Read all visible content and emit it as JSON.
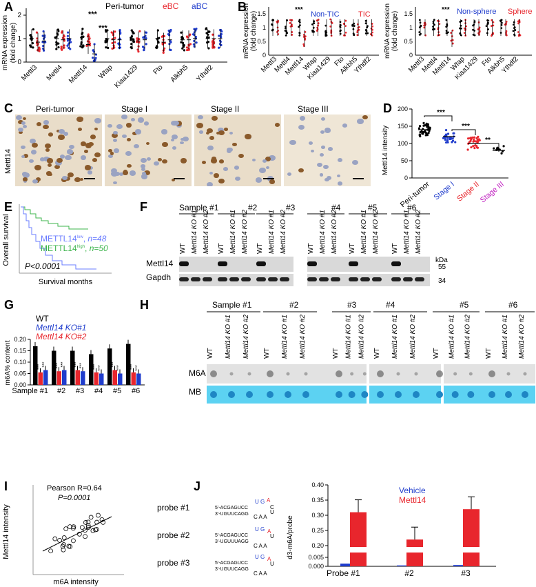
{
  "panels": {
    "A": {
      "letter": "A",
      "legend": {
        "peri": "Peri-tumor",
        "ebc": "eBC",
        "abc": "aBC"
      },
      "ylabel1": "mRNA expression",
      "ylabel2": "(fold change)",
      "genes": [
        "Mettl3",
        "Mettl4",
        "Mettl14",
        "Wtap",
        "Kiaa1429",
        "Fto",
        "Alkbh5",
        "Ythdf2"
      ],
      "sig": "***",
      "yticks": [
        "0",
        "1",
        "2"
      ]
    },
    "B": {
      "letter": "B",
      "left": {
        "legend": {
          "a": "Non-TIC",
          "b": "TIC"
        }
      },
      "right": {
        "legend": {
          "a": "Non-sphere",
          "b": "Sphere"
        }
      },
      "ylabel1": "mRNA expression",
      "ylabel2": "(fold change)",
      "genes": [
        "Mettl3",
        "Mettl4",
        "Mettl14",
        "Wtap",
        "Kiaa1429",
        "Fto",
        "Alkbh5",
        "Ythdf2"
      ],
      "yticks": [
        "0",
        "0.5",
        "1",
        "1.5"
      ],
      "sig": "***"
    },
    "C": {
      "letter": "C",
      "ylabel": "Mettl14",
      "titles": [
        "Peri-tumor",
        "Stage I",
        "Stage II",
        "Stage III"
      ]
    },
    "D": {
      "letter": "D",
      "ylabel": "Mettl14 intensity",
      "yticks": [
        "0",
        "50",
        "100",
        "150",
        "200"
      ],
      "categories": [
        "Peri-tumor",
        "Stage I",
        "Stage II",
        "Stage III"
      ],
      "sig": [
        "***",
        "***",
        "**"
      ]
    },
    "E": {
      "letter": "E",
      "ylabel": "Overall survival",
      "xlabel": "Survival months",
      "low_label": "METTL14",
      "low_sup": "low",
      "low_n": "n=48",
      "high_label": "METTL14",
      "high_sup": "high",
      "high_n": "n=50",
      "pval": "P<0.0001"
    },
    "F": {
      "letter": "F",
      "samples": [
        "Sample #1",
        "#2",
        "#3",
        "#4",
        "#5",
        "#6"
      ],
      "lanes": [
        "WT",
        "Mettl14 KO #1",
        "Mettl14 KO #2"
      ],
      "proteins": [
        "Mettl14",
        "Gapdh"
      ],
      "kda": "kDa",
      "mw": [
        "55",
        "34"
      ]
    },
    "G": {
      "letter": "G",
      "legend": {
        "wt": "WT",
        "ko1": "Mettl14 KO#1",
        "ko2": "Mettl14 KO#2"
      },
      "ylabel": "m6A% content",
      "yticks": [
        "0.00",
        "0.05",
        "0.10",
        "0.15",
        "0.20"
      ],
      "samples": [
        "Sample #1",
        "#2",
        "#3",
        "#4",
        "#5",
        "#6"
      ]
    },
    "H": {
      "letter": "H",
      "samples": [
        "Sample #1",
        "#2",
        "#3",
        "#4",
        "#5",
        "#6"
      ],
      "lanes": [
        "WT",
        "Mettl14 KO #1",
        "Mettl14 KO #2"
      ],
      "rows": [
        "M6A",
        "MB"
      ]
    },
    "I": {
      "letter": "I",
      "title": "Pearson R=0.64",
      "pval": "P=0.0001",
      "ylabel": "Mettl14 intensity",
      "xlabel": "m6A intensity",
      "xticks": [
        "0",
        "50",
        "100",
        "150",
        "200"
      ],
      "yticks": [
        "0",
        "50",
        "100",
        "150",
        "200",
        "250"
      ]
    },
    "J": {
      "letter": "J",
      "probes": [
        "probe #1",
        "probe #2",
        "probe #3"
      ],
      "legend": {
        "vehicle": "Vehicle",
        "mettl14": "Mettl14"
      },
      "ylabel": "d3-m6A/probe",
      "yticks_top": [
        "0.20",
        "0.25",
        "0.30",
        "0.35",
        "0.40"
      ],
      "yticks_bottom": [
        "0.000",
        "0.005"
      ],
      "categories": [
        "Probe #1",
        "#2",
        "#3"
      ]
    }
  },
  "chart_data": [
    {
      "id": "A",
      "type": "scatter",
      "categories": [
        "Mettl3",
        "Mettl4",
        "Mettl14",
        "Wtap",
        "Kiaa1429",
        "Fto",
        "Alkbh5",
        "Ythdf2"
      ],
      "series": [
        {
          "name": "Peri-tumor",
          "color": "#000000",
          "values": [
            1.0,
            1.0,
            1.05,
            1.0,
            1.0,
            1.0,
            0.95,
            1.0
          ]
        },
        {
          "name": "eBC",
          "color": "#e8262d",
          "values": [
            0.85,
            0.95,
            0.75,
            0.95,
            0.9,
            0.85,
            0.95,
            1.0
          ]
        },
        {
          "name": "aBC",
          "color": "#1f3ccc",
          "values": [
            0.9,
            1.0,
            0.35,
            0.95,
            0.95,
            0.95,
            1.0,
            1.0
          ]
        }
      ],
      "ylim": [
        0,
        2
      ]
    },
    {
      "id": "D",
      "type": "scatter",
      "categories": [
        "Peri-tumor",
        "Stage I",
        "Stage II",
        "Stage III"
      ],
      "values": [
        140,
        120,
        100,
        80
      ],
      "ylim": [
        0,
        200
      ]
    },
    {
      "id": "G",
      "type": "bar",
      "categories": [
        "Sample #1",
        "#2",
        "#3",
        "#4",
        "#5",
        "#6"
      ],
      "series": [
        {
          "name": "WT",
          "color": "#000000",
          "values": [
            0.17,
            0.15,
            0.15,
            0.135,
            0.16,
            0.18
          ]
        },
        {
          "name": "Mettl14 KO#1",
          "color": "#e8262d",
          "values": [
            0.055,
            0.06,
            0.065,
            0.055,
            0.065,
            0.055
          ]
        },
        {
          "name": "Mettl14 KO#2",
          "color": "#1f3ccc",
          "values": [
            0.065,
            0.065,
            0.06,
            0.05,
            0.05,
            0.05
          ]
        }
      ],
      "ylim": [
        0,
        0.2
      ]
    },
    {
      "id": "J",
      "type": "bar",
      "categories": [
        "Probe #1",
        "#2",
        "#3"
      ],
      "series": [
        {
          "name": "Vehicle",
          "color": "#1f3ccc",
          "values": [
            0.0015,
            0.0005,
            0.0007
          ]
        },
        {
          "name": "Mettl14",
          "color": "#e8262d",
          "values": [
            0.31,
            0.22,
            0.32
          ]
        }
      ]
    }
  ]
}
